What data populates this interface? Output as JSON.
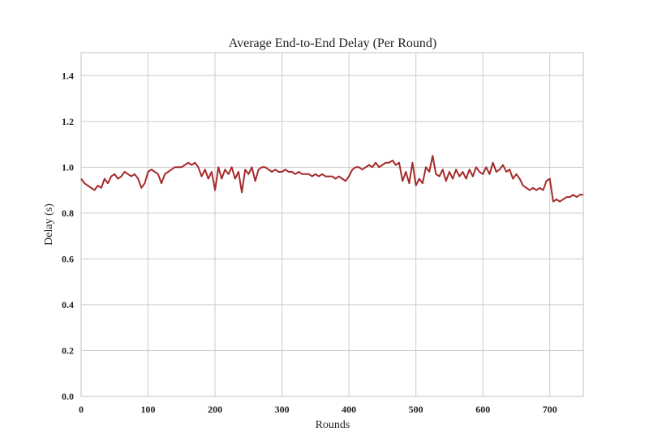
{
  "chart_data": {
    "type": "line",
    "title": "Average End-to-End Delay (Per Round)",
    "xlabel": "Rounds",
    "ylabel": "Delay (s)",
    "xlim": [
      0,
      750
    ],
    "ylim": [
      0,
      1.5
    ],
    "xticks": [
      0,
      100,
      200,
      300,
      400,
      500,
      600,
      700
    ],
    "yticks": [
      0.0,
      0.2,
      0.4,
      0.6,
      0.8,
      1.0,
      1.2,
      1.4
    ],
    "xtick_labels": [
      "0",
      "100",
      "200",
      "300",
      "400",
      "500",
      "600",
      "700"
    ],
    "ytick_labels": [
      "0.0",
      "0.2",
      "0.4",
      "0.6",
      "0.8",
      "1.0",
      "1.2",
      "1.4"
    ],
    "grid": true,
    "line_color": "#a52a2a",
    "series": [
      {
        "x": [
          0,
          5,
          10,
          15,
          20,
          25,
          30,
          35,
          40,
          45,
          50,
          55,
          60,
          65,
          70,
          75,
          80,
          85,
          90,
          95,
          100,
          105,
          110,
          115,
          120,
          125,
          130,
          135,
          140,
          145,
          150,
          155,
          160,
          165,
          170,
          175,
          180,
          185,
          190,
          195,
          200,
          205,
          210,
          215,
          220,
          225,
          230,
          235,
          240,
          245,
          250,
          255,
          260,
          265,
          270,
          275,
          280,
          285,
          290,
          295,
          300,
          305,
          310,
          315,
          320,
          325,
          330,
          335,
          340,
          345,
          350,
          355,
          360,
          365,
          370,
          375,
          380,
          385,
          390,
          395,
          400,
          405,
          410,
          415,
          420,
          425,
          430,
          435,
          440,
          445,
          450,
          455,
          460,
          465,
          470,
          475,
          480,
          485,
          490,
          495,
          500,
          505,
          510,
          515,
          520,
          525,
          530,
          535,
          540,
          545,
          550,
          555,
          560,
          565,
          570,
          575,
          580,
          585,
          590,
          595,
          600,
          605,
          610,
          615,
          620,
          625,
          630,
          635,
          640,
          645,
          650,
          655,
          660,
          665,
          670,
          675,
          680,
          685,
          690,
          695,
          700,
          705,
          710,
          715,
          720,
          725,
          730,
          735,
          740,
          745,
          750
        ],
        "y": [
          0.95,
          0.93,
          0.92,
          0.91,
          0.9,
          0.92,
          0.91,
          0.95,
          0.93,
          0.96,
          0.97,
          0.95,
          0.96,
          0.98,
          0.97,
          0.96,
          0.97,
          0.95,
          0.91,
          0.93,
          0.98,
          0.99,
          0.98,
          0.97,
          0.93,
          0.97,
          0.98,
          0.99,
          1.0,
          1.0,
          1.0,
          1.01,
          1.02,
          1.01,
          1.02,
          1.0,
          0.96,
          0.99,
          0.95,
          0.98,
          0.9,
          1.0,
          0.95,
          0.99,
          0.97,
          1.0,
          0.95,
          0.98,
          0.89,
          0.99,
          0.97,
          1.0,
          0.94,
          0.99,
          1.0,
          1.0,
          0.99,
          0.98,
          0.99,
          0.98,
          0.98,
          0.99,
          0.98,
          0.98,
          0.97,
          0.98,
          0.97,
          0.97,
          0.97,
          0.96,
          0.97,
          0.96,
          0.97,
          0.96,
          0.96,
          0.96,
          0.95,
          0.96,
          0.95,
          0.94,
          0.96,
          0.99,
          1.0,
          1.0,
          0.99,
          1.0,
          1.01,
          1.0,
          1.02,
          1.0,
          1.01,
          1.02,
          1.02,
          1.03,
          1.01,
          1.02,
          0.94,
          0.98,
          0.93,
          1.02,
          0.92,
          0.95,
          0.93,
          1.0,
          0.98,
          1.05,
          0.97,
          0.96,
          0.99,
          0.94,
          0.98,
          0.95,
          0.99,
          0.96,
          0.98,
          0.95,
          0.99,
          0.96,
          1.0,
          0.98,
          0.97,
          1.0,
          0.97,
          1.02,
          0.98,
          0.99,
          1.01,
          0.98,
          0.99,
          0.95,
          0.97,
          0.95,
          0.92,
          0.91,
          0.9,
          0.91,
          0.9,
          0.91,
          0.9,
          0.94,
          0.95,
          0.85,
          0.86,
          0.85,
          0.86,
          0.87,
          0.87,
          0.88,
          0.87,
          0.88,
          0.88
        ]
      }
    ]
  }
}
